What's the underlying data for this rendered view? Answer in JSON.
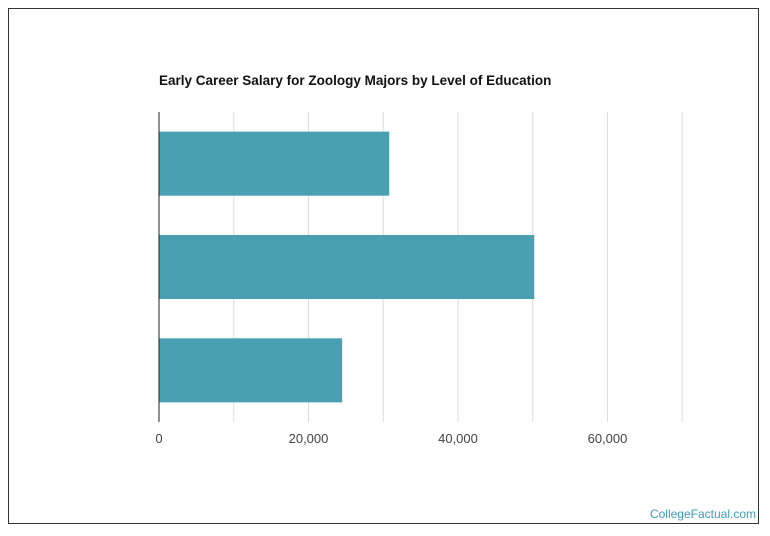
{
  "chart_data": {
    "type": "bar",
    "orientation": "horizontal",
    "title": "Early Career Salary for Zoology Majors by Level of Education",
    "xlabel": "",
    "ylabel": "",
    "categories": [
      "",
      "",
      ""
    ],
    "values": [
      30800,
      50200,
      24500
    ],
    "xlim": [
      0,
      80000
    ],
    "xticks": [
      0,
      20000,
      40000,
      60000
    ],
    "xtick_labels": [
      "0",
      "20,000",
      "40,000",
      "60,000"
    ],
    "grid": "vertical",
    "bar_color": "#4aa0b3",
    "legend": "none"
  },
  "watermark": "CollegeFactual.com",
  "colors": {
    "bar": "#4aa0b3",
    "grid": "#dddddd",
    "axis": "#222222",
    "watermark": "#3d9bb5"
  }
}
